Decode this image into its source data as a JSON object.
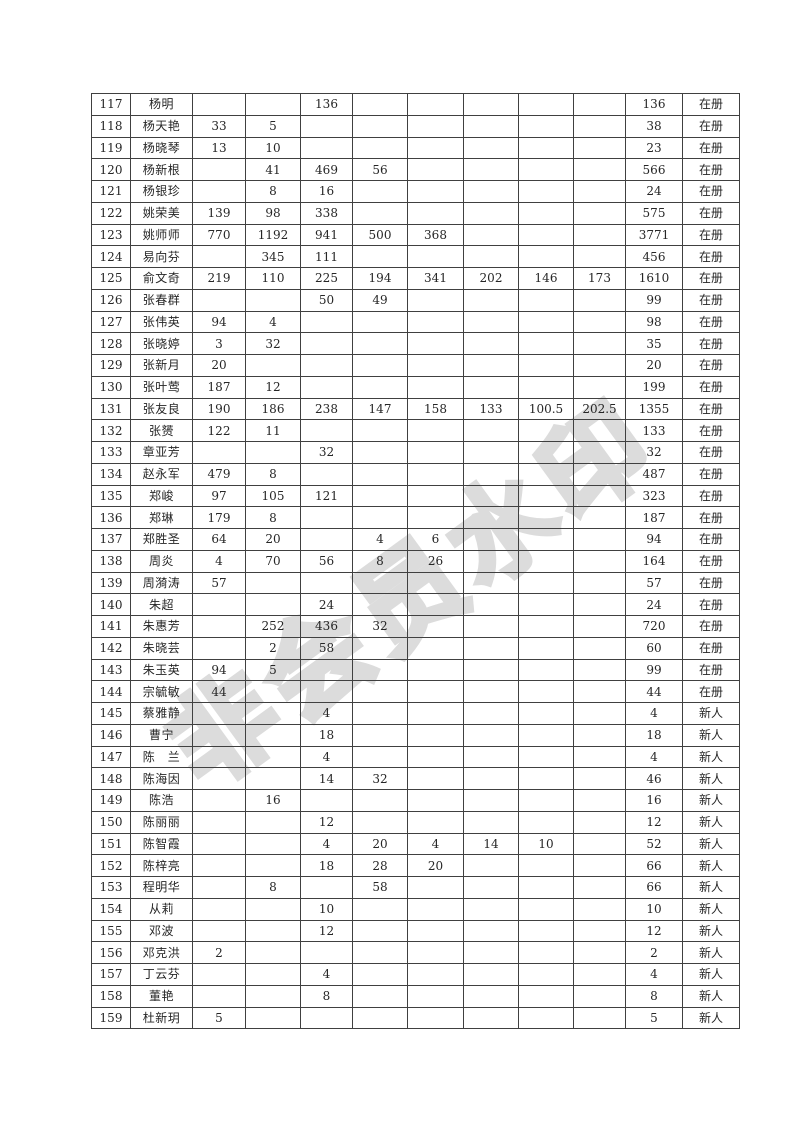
{
  "page": {
    "watermark_text": "非会员水印"
  },
  "colors": {
    "table_border": "#404040",
    "text": "#262626",
    "watermark_stroke": "#dcdcdc",
    "page_background": "#ffffff"
  },
  "table": {
    "value_columns": 8,
    "rows": [
      {
        "no": "117",
        "name": "杨明",
        "values": [
          "",
          "",
          "136",
          "",
          "",
          "",
          "",
          ""
        ],
        "total": "136",
        "status": "在册"
      },
      {
        "no": "118",
        "name": "杨天艳",
        "values": [
          "33",
          "5",
          "",
          "",
          "",
          "",
          "",
          ""
        ],
        "total": "38",
        "status": "在册"
      },
      {
        "no": "119",
        "name": "杨晓琴",
        "values": [
          "13",
          "10",
          "",
          "",
          "",
          "",
          "",
          ""
        ],
        "total": "23",
        "status": "在册"
      },
      {
        "no": "120",
        "name": "杨新根",
        "values": [
          "",
          "41",
          "469",
          "56",
          "",
          "",
          "",
          ""
        ],
        "total": "566",
        "status": "在册"
      },
      {
        "no": "121",
        "name": "杨银珍",
        "values": [
          "",
          "8",
          "16",
          "",
          "",
          "",
          "",
          ""
        ],
        "total": "24",
        "status": "在册"
      },
      {
        "no": "122",
        "name": "姚荣美",
        "values": [
          "139",
          "98",
          "338",
          "",
          "",
          "",
          "",
          ""
        ],
        "total": "575",
        "status": "在册"
      },
      {
        "no": "123",
        "name": "姚师师",
        "values": [
          "770",
          "1192",
          "941",
          "500",
          "368",
          "",
          "",
          ""
        ],
        "total": "3771",
        "status": "在册"
      },
      {
        "no": "124",
        "name": "易向芬",
        "values": [
          "",
          "345",
          "111",
          "",
          "",
          "",
          "",
          ""
        ],
        "total": "456",
        "status": "在册"
      },
      {
        "no": "125",
        "name": "俞文奇",
        "values": [
          "219",
          "110",
          "225",
          "194",
          "341",
          "202",
          "146",
          "173"
        ],
        "total": "1610",
        "status": "在册"
      },
      {
        "no": "126",
        "name": "张春群",
        "values": [
          "",
          "",
          "50",
          "49",
          "",
          "",
          "",
          ""
        ],
        "total": "99",
        "status": "在册"
      },
      {
        "no": "127",
        "name": "张伟英",
        "values": [
          "94",
          "4",
          "",
          "",
          "",
          "",
          "",
          ""
        ],
        "total": "98",
        "status": "在册"
      },
      {
        "no": "128",
        "name": "张晓婷",
        "values": [
          "3",
          "32",
          "",
          "",
          "",
          "",
          "",
          ""
        ],
        "total": "35",
        "status": "在册"
      },
      {
        "no": "129",
        "name": "张新月",
        "values": [
          "20",
          "",
          "",
          "",
          "",
          "",
          "",
          ""
        ],
        "total": "20",
        "status": "在册"
      },
      {
        "no": "130",
        "name": "张叶莺",
        "values": [
          "187",
          "12",
          "",
          "",
          "",
          "",
          "",
          ""
        ],
        "total": "199",
        "status": "在册"
      },
      {
        "no": "131",
        "name": "张友良",
        "values": [
          "190",
          "186",
          "238",
          "147",
          "158",
          "133",
          "100.5",
          "202.5"
        ],
        "total": "1355",
        "status": "在册"
      },
      {
        "no": "132",
        "name": "张赟",
        "values": [
          "122",
          "11",
          "",
          "",
          "",
          "",
          "",
          ""
        ],
        "total": "133",
        "status": "在册"
      },
      {
        "no": "133",
        "name": "章亚芳",
        "values": [
          "",
          "",
          "32",
          "",
          "",
          "",
          "",
          ""
        ],
        "total": "32",
        "status": "在册"
      },
      {
        "no": "134",
        "name": "赵永军",
        "values": [
          "479",
          "8",
          "",
          "",
          "",
          "",
          "",
          ""
        ],
        "total": "487",
        "status": "在册"
      },
      {
        "no": "135",
        "name": "郑峻",
        "values": [
          "97",
          "105",
          "121",
          "",
          "",
          "",
          "",
          ""
        ],
        "total": "323",
        "status": "在册"
      },
      {
        "no": "136",
        "name": "郑琳",
        "values": [
          "179",
          "8",
          "",
          "",
          "",
          "",
          "",
          ""
        ],
        "total": "187",
        "status": "在册"
      },
      {
        "no": "137",
        "name": "郑胜圣",
        "values": [
          "64",
          "20",
          "",
          "4",
          "6",
          "",
          "",
          ""
        ],
        "total": "94",
        "status": "在册"
      },
      {
        "no": "138",
        "name": "周炎",
        "values": [
          "4",
          "70",
          "56",
          "8",
          "26",
          "",
          "",
          ""
        ],
        "total": "164",
        "status": "在册"
      },
      {
        "no": "139",
        "name": "周漪涛",
        "values": [
          "57",
          "",
          "",
          "",
          "",
          "",
          "",
          ""
        ],
        "total": "57",
        "status": "在册"
      },
      {
        "no": "140",
        "name": "朱超",
        "values": [
          "",
          "",
          "24",
          "",
          "",
          "",
          "",
          ""
        ],
        "total": "24",
        "status": "在册"
      },
      {
        "no": "141",
        "name": "朱惠芳",
        "values": [
          "",
          "252",
          "436",
          "32",
          "",
          "",
          "",
          ""
        ],
        "total": "720",
        "status": "在册"
      },
      {
        "no": "142",
        "name": "朱晓芸",
        "values": [
          "",
          "2",
          "58",
          "",
          "",
          "",
          "",
          ""
        ],
        "total": "60",
        "status": "在册"
      },
      {
        "no": "143",
        "name": "朱玉英",
        "values": [
          "94",
          "5",
          "",
          "",
          "",
          "",
          "",
          ""
        ],
        "total": "99",
        "status": "在册"
      },
      {
        "no": "144",
        "name": "宗毓敏",
        "values": [
          "44",
          "",
          "",
          "",
          "",
          "",
          "",
          ""
        ],
        "total": "44",
        "status": "在册"
      },
      {
        "no": "145",
        "name": "蔡雅静",
        "values": [
          "",
          "",
          "4",
          "",
          "",
          "",
          "",
          ""
        ],
        "total": "4",
        "status": "新人"
      },
      {
        "no": "146",
        "name": "曹宁",
        "values": [
          "",
          "",
          "18",
          "",
          "",
          "",
          "",
          ""
        ],
        "total": "18",
        "status": "新人"
      },
      {
        "no": "147",
        "name": "陈　兰",
        "values": [
          "",
          "",
          "4",
          "",
          "",
          "",
          "",
          ""
        ],
        "total": "4",
        "status": "新人"
      },
      {
        "no": "148",
        "name": "陈海因",
        "values": [
          "",
          "",
          "14",
          "32",
          "",
          "",
          "",
          ""
        ],
        "total": "46",
        "status": "新人"
      },
      {
        "no": "149",
        "name": "陈浩",
        "values": [
          "",
          "16",
          "",
          "",
          "",
          "",
          "",
          ""
        ],
        "total": "16",
        "status": "新人"
      },
      {
        "no": "150",
        "name": "陈丽丽",
        "values": [
          "",
          "",
          "12",
          "",
          "",
          "",
          "",
          ""
        ],
        "total": "12",
        "status": "新人"
      },
      {
        "no": "151",
        "name": "陈智霞",
        "values": [
          "",
          "",
          "4",
          "20",
          "4",
          "14",
          "10",
          ""
        ],
        "total": "52",
        "status": "新人"
      },
      {
        "no": "152",
        "name": "陈梓亮",
        "values": [
          "",
          "",
          "18",
          "28",
          "20",
          "",
          "",
          ""
        ],
        "total": "66",
        "status": "新人"
      },
      {
        "no": "153",
        "name": "程明华",
        "values": [
          "",
          "8",
          "",
          "58",
          "",
          "",
          "",
          ""
        ],
        "total": "66",
        "status": "新人"
      },
      {
        "no": "154",
        "name": "从莉",
        "values": [
          "",
          "",
          "10",
          "",
          "",
          "",
          "",
          ""
        ],
        "total": "10",
        "status": "新人"
      },
      {
        "no": "155",
        "name": "邓波",
        "values": [
          "",
          "",
          "12",
          "",
          "",
          "",
          "",
          ""
        ],
        "total": "12",
        "status": "新人"
      },
      {
        "no": "156",
        "name": "邓克洪",
        "values": [
          "2",
          "",
          "",
          "",
          "",
          "",
          "",
          ""
        ],
        "total": "2",
        "status": "新人"
      },
      {
        "no": "157",
        "name": "丁云芬",
        "values": [
          "",
          "",
          "4",
          "",
          "",
          "",
          "",
          ""
        ],
        "total": "4",
        "status": "新人"
      },
      {
        "no": "158",
        "name": "董艳",
        "values": [
          "",
          "",
          "8",
          "",
          "",
          "",
          "",
          ""
        ],
        "total": "8",
        "status": "新人"
      },
      {
        "no": "159",
        "name": "杜新玥",
        "values": [
          "5",
          "",
          "",
          "",
          "",
          "",
          "",
          ""
        ],
        "total": "5",
        "status": "新人"
      }
    ]
  }
}
